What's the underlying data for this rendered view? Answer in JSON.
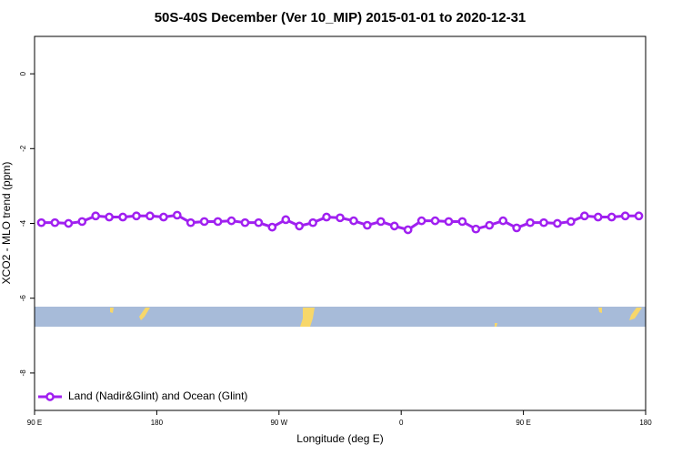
{
  "chart_data": {
    "type": "line",
    "title": "50S-40S December (Ver 10_MIP)   2015-01-01 to 2020-12-31",
    "x_label": "Longitude (deg E)",
    "y_label": "XCO2 - MLO trend (ppm)",
    "xlim": [
      90,
      540
    ],
    "xticks": [
      {
        "value": 90,
        "label": "90 E"
      },
      {
        "value": 180,
        "label": "180"
      },
      {
        "value": 270,
        "label": "90 W"
      },
      {
        "value": 360,
        "label": "0"
      },
      {
        "value": 450,
        "label": "90 E"
      },
      {
        "value": 540,
        "label": "180"
      }
    ],
    "ylim": [
      -9,
      1
    ],
    "yticks": [
      0,
      -2,
      -4,
      -6,
      -8
    ],
    "legend": "bottomleft",
    "x": [
      95,
      105,
      115,
      125,
      135,
      145,
      155,
      165,
      175,
      185,
      195,
      205,
      215,
      225,
      235,
      245,
      255,
      265,
      275,
      285,
      295,
      305,
      315,
      325,
      335,
      345,
      355,
      365,
      375,
      385,
      395,
      405,
      415,
      425,
      435,
      445,
      455,
      465,
      475,
      485,
      495,
      505,
      515,
      525,
      535
    ],
    "series": [
      {
        "name": "Land (Nadir&Glint) and Ocean (Glint)",
        "color": "#a020f0",
        "values": [
          -3.98,
          -3.98,
          -4.0,
          -3.95,
          -3.8,
          -3.83,
          -3.83,
          -3.8,
          -3.8,
          -3.83,
          -3.78,
          -3.98,
          -3.95,
          -3.95,
          -3.93,
          -3.98,
          -3.98,
          -4.1,
          -3.9,
          -4.07,
          -3.98,
          -3.83,
          -3.85,
          -3.93,
          -4.05,
          -3.95,
          -4.07,
          -4.17,
          -3.93,
          -3.93,
          -3.95,
          -3.95,
          -4.15,
          -4.05,
          -3.93,
          -4.12,
          -3.98,
          -3.98,
          -4.0,
          -3.95,
          -3.8,
          -3.83,
          -3.83,
          -3.8,
          -3.8
        ]
      }
    ]
  }
}
